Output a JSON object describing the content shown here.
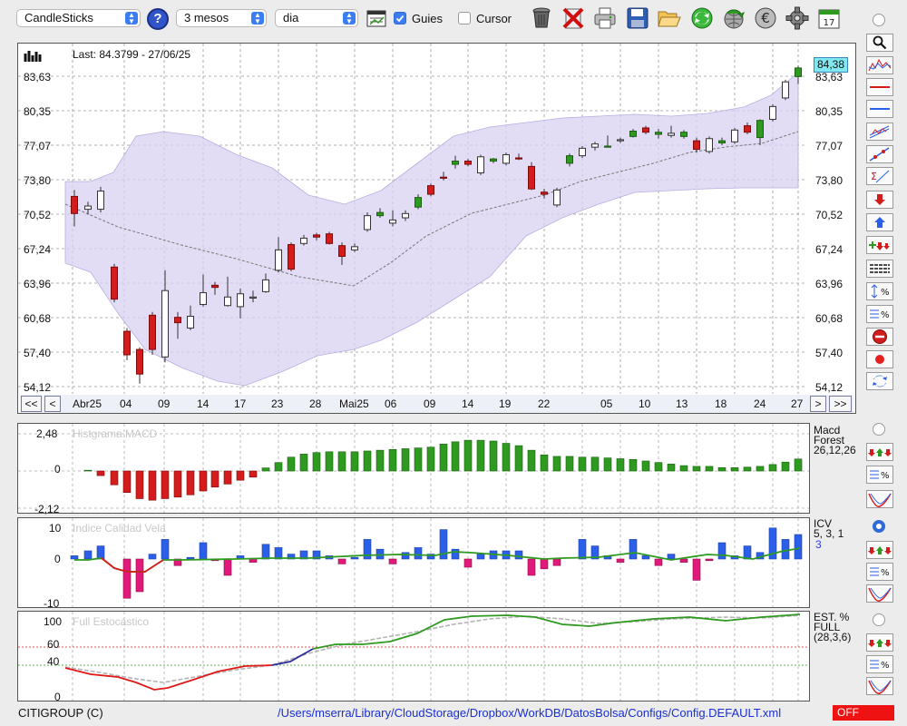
{
  "toolbar": {
    "chart_type": "CandleSticks",
    "period": "3 mesos",
    "interval": "dia",
    "guides_label": "Guies",
    "guides_checked": true,
    "cursor_label": "Cursor",
    "cursor_checked": false,
    "icons": [
      "help-icon",
      "calendar-grid-icon",
      "trash-icon",
      "delete-icon",
      "print-icon",
      "save-icon",
      "folder-open-icon",
      "refresh-icon",
      "globe-arrow-icon",
      "euro-coin-icon",
      "gear-icon",
      "calendar-17-icon"
    ]
  },
  "main_chart": {
    "last_info": "Last: 84.3799 - 27/06/25",
    "last_price_badge": "84,38",
    "y_ticks": [
      "83,63",
      "80,35",
      "77,07",
      "73,80",
      "70,52",
      "67,24",
      "63,96",
      "60,68",
      "57,40",
      "54,12"
    ],
    "x_labels": [
      "Abr25",
      "04",
      "09",
      "14",
      "17",
      "23",
      "28",
      "Mai25",
      "06",
      "09",
      "14",
      "19",
      "22",
      "05",
      "10",
      "13",
      "18",
      "24",
      "27"
    ],
    "nav": {
      "first": "<<",
      "prev": "<",
      "next": ">",
      "last": ">>"
    }
  },
  "macd": {
    "title": "Histgrama MACD",
    "label_1": "Macd",
    "label_2": "Forest",
    "label_3": "26,12,26",
    "ticks": [
      "2,48",
      "0",
      "-2,12"
    ]
  },
  "icv": {
    "title": "Indice Calidad Vela",
    "label_1": "ICV",
    "label_2": "5, 3, 1",
    "label_3": "3",
    "ticks": [
      "10",
      "0",
      "-10"
    ]
  },
  "stoch": {
    "title": "Full Estocastico",
    "label_1": "EST. %",
    "label_2": "FULL",
    "label_3": "(28,3,6)",
    "ticks": [
      "100",
      "60",
      "40",
      "0"
    ]
  },
  "status": {
    "symbol": "CITIGROUP (C)",
    "path": "/Users/mserra/Library/CloudStorage/Dropbox/WorkDB/DatosBolsa/Configs/Config.DEFAULT.xml",
    "off": "OFF"
  },
  "colors": {
    "up": "#2e9a1f",
    "down": "#d41c1c",
    "blue": "#2c5fe8",
    "band": "#d8d0f2",
    "badge": "#7fe8f0"
  },
  "chart_data": {
    "type": "candlestick",
    "x": [
      "Abr25",
      "04",
      "09",
      "14",
      "17",
      "23",
      "28",
      "Mai25",
      "06",
      "09",
      "14",
      "19",
      "22",
      "05",
      "10",
      "13",
      "18",
      "24",
      "27"
    ],
    "last": 84.38,
    "ylim": [
      54.12,
      83.63
    ]
  }
}
